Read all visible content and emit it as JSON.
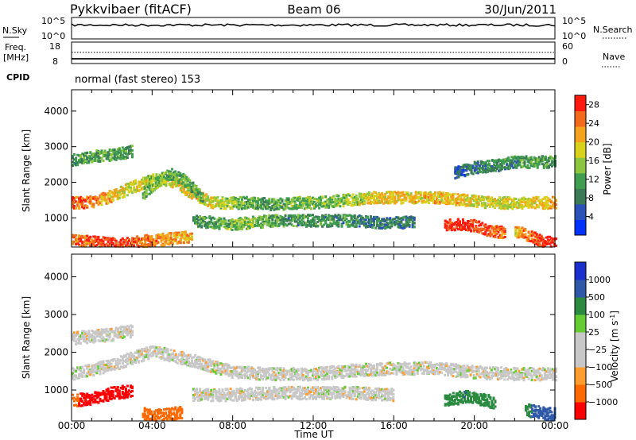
{
  "header": {
    "station": "Pykkvibaer (fitACF)",
    "beam": "Beam 06",
    "date": "30/Jun/2011"
  },
  "nsky_panel": {
    "label": "N.Sky",
    "left_ticks": [
      "10^5",
      "10^0"
    ],
    "right_ticks": [
      "10^5",
      "10^0"
    ],
    "right_label": "N.Search"
  },
  "freq_panel": {
    "label_line1": "Freq.",
    "label_line2": "[MHz]",
    "left_ticks": [
      "18",
      "8"
    ],
    "right_ticks": [
      "60",
      "0"
    ],
    "right_label": "Nave"
  },
  "cpid": {
    "label": "CPID",
    "value": "normal (fast stereo) 153"
  },
  "x_axis": {
    "label": "Time UT",
    "tick_labels": [
      "00:00",
      "04:00",
      "08:00",
      "12:00",
      "16:00",
      "20:00",
      "00:00"
    ]
  },
  "colors": {
    "power_scale": [
      "#0033ff",
      "#2a52b8",
      "#3a7a55",
      "#3f9e50",
      "#8cc63f",
      "#d8d21c",
      "#f5a21c",
      "#f26a1c",
      "#ff1a0f"
    ],
    "velocity_scale": [
      "#ff0000",
      "#ff6a00",
      "#ff9d2e",
      "#c8c8c8",
      "#c8c8c8",
      "#66cc33",
      "#2a8a40",
      "#3058a8",
      "#1a2fcc"
    ],
    "background_scatter": "#ffffff"
  },
  "chart_data": [
    {
      "type": "heatmap",
      "name": "power",
      "ylabel": "Slant Range [km]",
      "xlabel": "Time UT",
      "x_ticks": [
        "00:00",
        "04:00",
        "08:00",
        "12:00",
        "16:00",
        "20:00",
        "00:00"
      ],
      "x_hours": [
        0,
        4,
        8,
        12,
        16,
        20,
        24
      ],
      "y_ticks": [
        1000,
        2000,
        3000,
        4000
      ],
      "ylim": [
        180,
        4600
      ],
      "xlim": [
        0,
        24
      ],
      "colorbar": {
        "label": "Power [dB]",
        "ticks": [
          4,
          8,
          12,
          16,
          20,
          24,
          28
        ],
        "range": [
          0,
          30
        ]
      },
      "bands": [
        {
          "t": [
            0,
            1,
            2,
            3,
            4,
            5,
            6,
            7,
            8,
            9,
            10,
            11,
            12,
            13,
            14,
            15,
            16,
            17,
            18,
            19,
            20,
            21,
            22,
            23,
            24
          ],
          "center": [
            1450,
            1480,
            1650,
            1900,
            2100,
            2050,
            1700,
            1450,
            1450,
            1450,
            1400,
            1450,
            1450,
            1500,
            1550,
            1600,
            1600,
            1600,
            1600,
            1550,
            1500,
            1450,
            1450,
            1450,
            1450
          ],
          "power": [
            26,
            24,
            20,
            18,
            16,
            18,
            20,
            18,
            14,
            12,
            12,
            14,
            14,
            14,
            16,
            18,
            20,
            20,
            20,
            20,
            18,
            18,
            18,
            20,
            22
          ]
        },
        {
          "t": [
            3.5,
            4,
            4.5,
            5,
            5.5,
            6,
            6.5
          ],
          "center": [
            1700,
            1950,
            2150,
            2250,
            2100,
            1850,
            1600
          ],
          "power": [
            12,
            14,
            14,
            12,
            12,
            12,
            12
          ]
        },
        {
          "t": [
            6,
            7,
            8,
            9,
            10,
            11,
            12,
            13,
            14,
            15,
            16,
            17
          ],
          "center": [
            950,
            900,
            850,
            900,
            950,
            950,
            950,
            950,
            950,
            900,
            900,
            900
          ],
          "power": [
            10,
            12,
            14,
            14,
            12,
            10,
            10,
            10,
            10,
            8,
            8,
            8
          ]
        },
        {
          "t": [
            18.5,
            19,
            19.5,
            20,
            20.5,
            21,
            21.5
          ],
          "center": [
            800,
            850,
            850,
            800,
            700,
            650,
            600
          ],
          "power": [
            28,
            30,
            30,
            28,
            28,
            26,
            24
          ]
        },
        {
          "t": [
            0,
            1,
            2,
            3,
            4,
            5,
            6
          ],
          "center": [
            400,
            350,
            300,
            350,
            400,
            450,
            500
          ],
          "power": [
            24,
            26,
            28,
            26,
            24,
            22,
            20
          ]
        },
        {
          "t": [
            22,
            22.5,
            23,
            23.5,
            24
          ],
          "center": [
            650,
            550,
            450,
            350,
            300
          ],
          "power": [
            20,
            24,
            26,
            28,
            28
          ]
        },
        {
          "t": [
            0,
            1,
            2,
            3
          ],
          "center": [
            2650,
            2750,
            2800,
            2900
          ],
          "power": [
            10,
            12,
            12,
            10
          ]
        },
        {
          "t": [
            19,
            20,
            21,
            22,
            23,
            24
          ],
          "center": [
            2300,
            2450,
            2500,
            2600,
            2600,
            2600
          ],
          "power": [
            6,
            8,
            10,
            10,
            12,
            10
          ]
        }
      ]
    },
    {
      "type": "heatmap",
      "name": "velocity",
      "ylabel": "Slant Range [km]",
      "xlabel": "Time UT",
      "x_ticks": [
        "00:00",
        "04:00",
        "08:00",
        "12:00",
        "16:00",
        "20:00",
        "00:00"
      ],
      "x_hours": [
        0,
        4,
        8,
        12,
        16,
        20,
        24
      ],
      "y_ticks": [
        1000,
        2000,
        3000,
        4000
      ],
      "ylim": [
        180,
        4600
      ],
      "xlim": [
        0,
        24
      ],
      "colorbar": {
        "label": "Velocity [m s^-1]",
        "tick_labels": [
          "1000",
          "500",
          "100",
          "25",
          "−25",
          "−100",
          "−500",
          "−1000"
        ]
      },
      "bands": [
        {
          "t": [
            0,
            2,
            4,
            6,
            8,
            10,
            12,
            14,
            16,
            18,
            20,
            22,
            24
          ],
          "center": [
            1450,
            1700,
            2050,
            1800,
            1500,
            1450,
            1450,
            1550,
            1600,
            1600,
            1500,
            1450,
            1450
          ],
          "velocity": [
            0,
            0,
            0,
            0,
            0,
            0,
            0,
            0,
            0,
            0,
            0,
            0,
            0
          ]
        },
        {
          "t": [
            0,
            1,
            2,
            3
          ],
          "center": [
            2400,
            2450,
            2500,
            2600
          ],
          "velocity": [
            0,
            0,
            0,
            0
          ]
        },
        {
          "t": [
            0,
            1,
            2,
            3
          ],
          "center": [
            750,
            800,
            950,
            1000
          ],
          "velocity": [
            -400,
            -700,
            -800,
            -600
          ]
        },
        {
          "t": [
            3.5,
            4,
            4.5,
            5,
            5.5
          ],
          "center": [
            400,
            350,
            350,
            400,
            450
          ],
          "velocity": [
            -200,
            -400,
            -300,
            -200,
            -150
          ]
        },
        {
          "t": [
            18.5,
            19,
            19.5,
            20,
            20.5,
            21
          ],
          "center": [
            750,
            800,
            850,
            800,
            750,
            700
          ],
          "velocity": [
            200,
            300,
            500,
            400,
            300,
            200
          ]
        },
        {
          "t": [
            22.5,
            23,
            23.5,
            24
          ],
          "center": [
            500,
            450,
            400,
            380
          ],
          "velocity": [
            400,
            600,
            700,
            800
          ]
        },
        {
          "t": [
            6,
            8,
            10,
            12,
            14,
            16
          ],
          "center": [
            900,
            900,
            950,
            950,
            950,
            900
          ],
          "velocity": [
            0,
            0,
            0,
            0,
            0,
            0
          ]
        }
      ]
    }
  ]
}
